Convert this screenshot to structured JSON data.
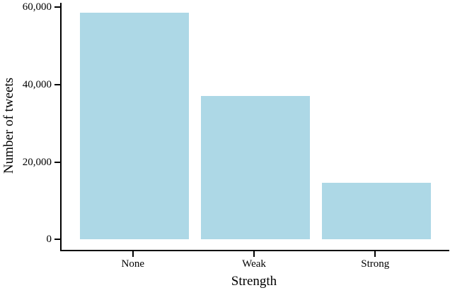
{
  "chart_data": {
    "type": "bar",
    "title": "",
    "categories": [
      "None",
      "Weak",
      "Strong"
    ],
    "values": [
      58500,
      37000,
      14700
    ],
    "xlabel": "Strength",
    "ylabel": "Number of tweets",
    "yticks": {
      "values": [
        0,
        20000,
        40000,
        60000
      ],
      "labels": [
        "0",
        "20,000",
        "40,000",
        "60,000"
      ]
    },
    "ylim": [
      -2650,
      61100
    ],
    "xlim": [
      -0.6,
      2.6
    ],
    "bar_width": 0.9,
    "bar_color": "#ADD8E6",
    "axis_color": "#000000",
    "background_color": "#FFFFFF",
    "grid": false,
    "legend": false
  }
}
